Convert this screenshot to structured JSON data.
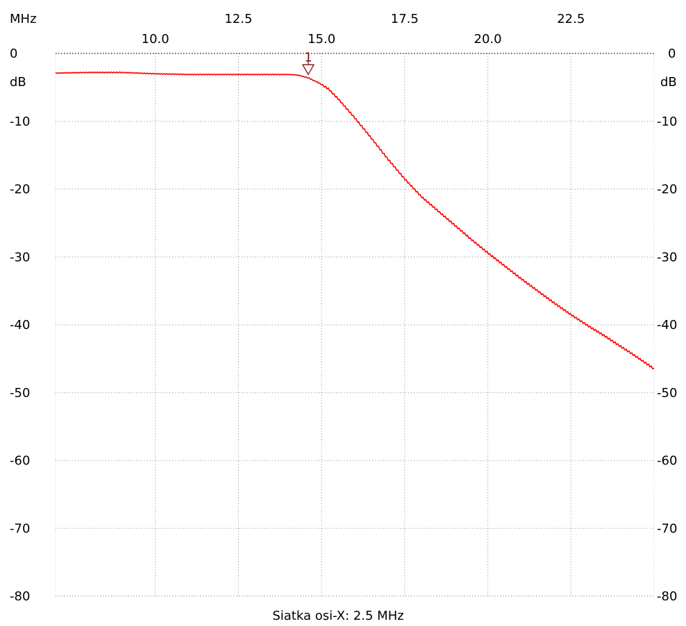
{
  "chart_data": {
    "type": "line",
    "x_unit": "MHz",
    "y_unit": "dB",
    "xlim": [
      7.0,
      25.0
    ],
    "ylim": [
      -80,
      0
    ],
    "x_ticks_upper": [
      "12.5",
      "17.5",
      "22.5"
    ],
    "x_ticks_lower": [
      "10.0",
      "15.0",
      "20.0"
    ],
    "y_ticks": [
      "0",
      "-10",
      "-20",
      "-30",
      "-40",
      "-50",
      "-60",
      "-70",
      "-80"
    ],
    "y_tick_values": [
      0,
      -10,
      -20,
      -30,
      -40,
      -50,
      -60,
      -70,
      -80
    ],
    "x_tick_values_upper": [
      12.5,
      17.5,
      22.5
    ],
    "x_tick_values_lower": [
      10.0,
      15.0,
      20.0
    ],
    "grid": true,
    "footer": "Siatka osi-X: 2.5 MHz",
    "series": [
      {
        "color": "#ff0000",
        "x": [
          7.0,
          8.0,
          9.0,
          10.0,
          11.0,
          12.0,
          13.0,
          14.0,
          14.3,
          14.6,
          14.9,
          15.2,
          15.5,
          16.0,
          16.5,
          17.0,
          17.5,
          18.0,
          18.5,
          19.0,
          19.5,
          20.0,
          20.5,
          21.0,
          21.5,
          22.0,
          22.5,
          23.0,
          23.5,
          24.0,
          24.5,
          25.0
        ],
        "y": [
          -2.9,
          -2.8,
          -2.8,
          -3.0,
          -3.1,
          -3.1,
          -3.1,
          -3.1,
          -3.2,
          -3.6,
          -4.3,
          -5.2,
          -6.7,
          -9.5,
          -12.5,
          -15.6,
          -18.5,
          -21.1,
          -23.2,
          -25.3,
          -27.4,
          -29.4,
          -31.3,
          -33.2,
          -35.0,
          -36.8,
          -38.5,
          -40.1,
          -41.6,
          -43.2,
          -44.8,
          -46.5
        ]
      }
    ],
    "markers": [
      {
        "label": "1",
        "x": 14.6,
        "y": -3.1
      }
    ]
  }
}
